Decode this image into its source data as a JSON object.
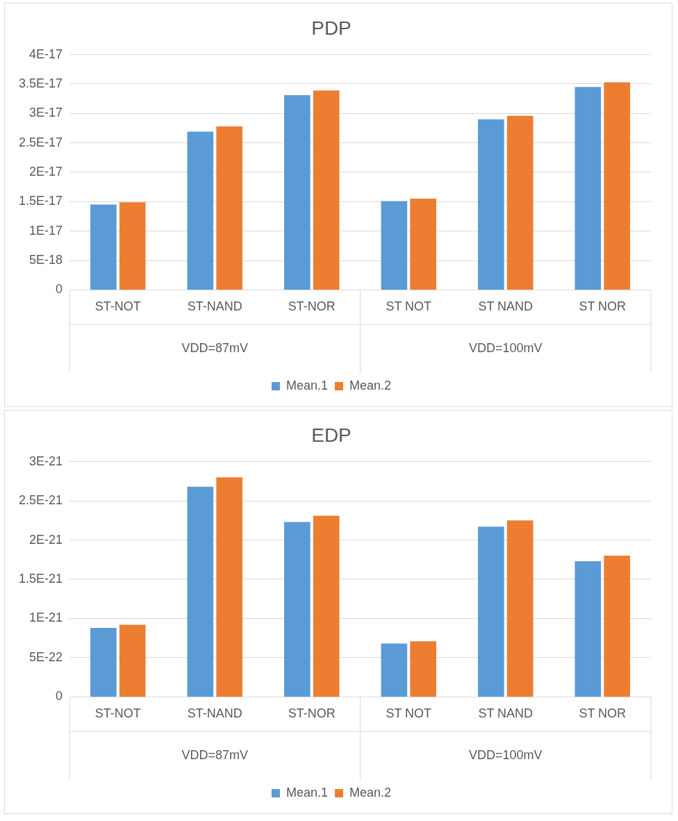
{
  "chart_data": [
    {
      "type": "bar",
      "title": "PDP",
      "categories": [
        "ST-NOT",
        "ST-NAND",
        "ST-NOR",
        "ST NOT",
        "ST NAND",
        "ST NOR"
      ],
      "series": [
        {
          "name": "Mean.1",
          "color": "#5b9bd5",
          "values": [
            1.45e-17,
            2.69e-17,
            3.31e-17,
            1.51e-17,
            2.9e-17,
            3.45e-17
          ]
        },
        {
          "name": "Mean.2",
          "color": "#ed7d31",
          "values": [
            1.49e-17,
            2.78e-17,
            3.39e-17,
            1.55e-17,
            2.96e-17,
            3.53e-17
          ]
        }
      ],
      "ylim": [
        0,
        4e-17
      ],
      "yticks": [
        0,
        {
          "value": 5e-18,
          "label": "5E-18"
        },
        {
          "value": 1e-17,
          "label": "1E-17"
        },
        {
          "value": 1.5e-17,
          "label": "1.5E-17"
        },
        {
          "value": 2e-17,
          "label": "2E-17"
        },
        {
          "value": 2.5e-17,
          "label": "2.5E-17"
        },
        {
          "value": 3e-17,
          "label": "3E-17"
        },
        {
          "value": 3.5e-17,
          "label": "3.5E-17"
        },
        {
          "value": 4e-17,
          "label": "4E-17"
        }
      ],
      "annotations": [
        "VDD=87mV",
        "VDD=100mV"
      ],
      "grid": "y",
      "legend": "bottom"
    },
    {
      "type": "bar",
      "title": "EDP",
      "categories": [
        "ST-NOT",
        "ST-NAND",
        "ST-NOR",
        "ST NOT",
        "ST NAND",
        "ST NOR"
      ],
      "series": [
        {
          "name": "Mean.1",
          "color": "#5b9bd5",
          "values": [
            8.8e-22,
            2.68e-21,
            2.23e-21,
            6.8e-22,
            2.17e-21,
            1.73e-21
          ]
        },
        {
          "name": "Mean.2",
          "color": "#ed7d31",
          "values": [
            9.2e-22,
            2.8e-21,
            2.31e-21,
            7.1e-22,
            2.25e-21,
            1.8e-21
          ]
        }
      ],
      "ylim": [
        0,
        3e-21
      ],
      "yticks": [
        0,
        {
          "value": 5e-22,
          "label": "5E-22"
        },
        {
          "value": 1e-21,
          "label": "1E-21"
        },
        {
          "value": 1.5e-21,
          "label": "1.5E-21"
        },
        {
          "value": 2e-21,
          "label": "2E-21"
        },
        {
          "value": 2.5e-21,
          "label": "2.5E-21"
        },
        {
          "value": 3e-21,
          "label": "3E-21"
        }
      ],
      "annotations": [
        "VDD=87mV",
        "VDD=100mV"
      ],
      "grid": "y",
      "legend": "bottom"
    }
  ]
}
